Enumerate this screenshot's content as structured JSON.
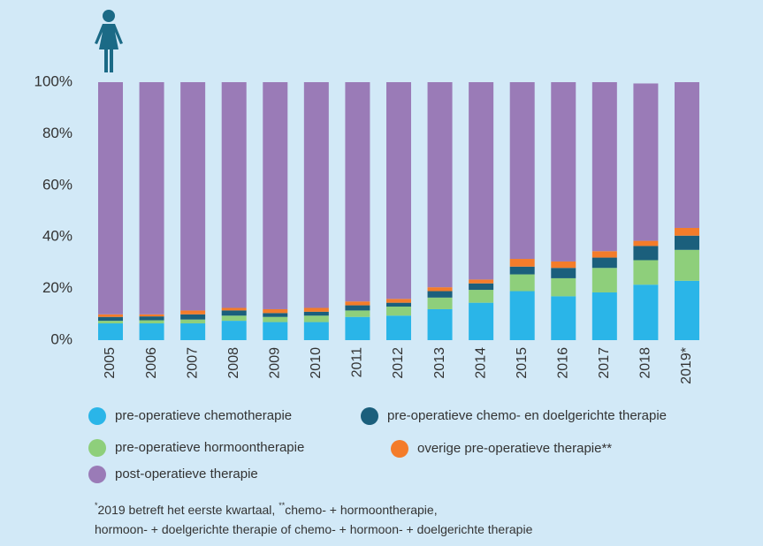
{
  "chart_data": {
    "type": "stacked_bar",
    "categories": [
      "2005",
      "2006",
      "2007",
      "2008",
      "2009",
      "2010",
      "2011",
      "2012",
      "2013",
      "2014",
      "2015",
      "2016",
      "2017",
      "2018",
      "2019*"
    ],
    "series": [
      {
        "name": "pre-operatieve chemotherapie",
        "color": "#2ab5e8",
        "values": [
          6.5,
          6.5,
          6.5,
          7.5,
          7,
          7,
          9,
          9.5,
          12,
          14.5,
          19,
          17,
          18.5,
          21.5,
          23
        ]
      },
      {
        "name": "pre-operatieve hormoontherapie",
        "color": "#8ecf7b",
        "values": [
          1,
          1.2,
          1.5,
          2,
          2,
          2.5,
          2.5,
          3.5,
          4.5,
          5,
          6.5,
          7,
          9.5,
          9.5,
          12
        ]
      },
      {
        "name": "pre-operatieve chemo- en doelgerichte therapie",
        "color": "#1b5f7c",
        "values": [
          1.5,
          1.5,
          2,
          2,
          1.5,
          1.5,
          2,
          1.5,
          2.5,
          2.5,
          3,
          4,
          4,
          5.5,
          5.5
        ]
      },
      {
        "name": "overige pre-operatieve therapie**",
        "color": "#f47c2a",
        "values": [
          1,
          0.8,
          1.5,
          1,
          1.5,
          1.5,
          1.5,
          1.5,
          1.5,
          1.5,
          3,
          2.5,
          2.5,
          2,
          3
        ]
      },
      {
        "name": "post-operatieve therapie",
        "color": "#9a7bb7",
        "values": [
          90,
          90,
          88.5,
          87.5,
          88,
          87.5,
          85,
          84,
          79.5,
          76.5,
          68.5,
          69.5,
          65.5,
          61,
          56.5
        ]
      }
    ],
    "ylim": [
      0,
      100
    ],
    "yticks": [
      {
        "value": 0,
        "label": "0%"
      },
      {
        "value": 20,
        "label": "20%"
      },
      {
        "value": 40,
        "label": "40%"
      },
      {
        "value": 60,
        "label": "60%"
      },
      {
        "value": 80,
        "label": "80%"
      },
      {
        "value": 100,
        "label": "100%"
      }
    ],
    "footnote": [
      [
        "*",
        "2019 betreft het eerste kwartaal, ",
        "**",
        "chemo- + hormoontherapie,"
      ],
      [
        "hormoon- + doelgerichte therapie of  chemo- + hormoon- + doelgerichte therapie"
      ]
    ]
  }
}
